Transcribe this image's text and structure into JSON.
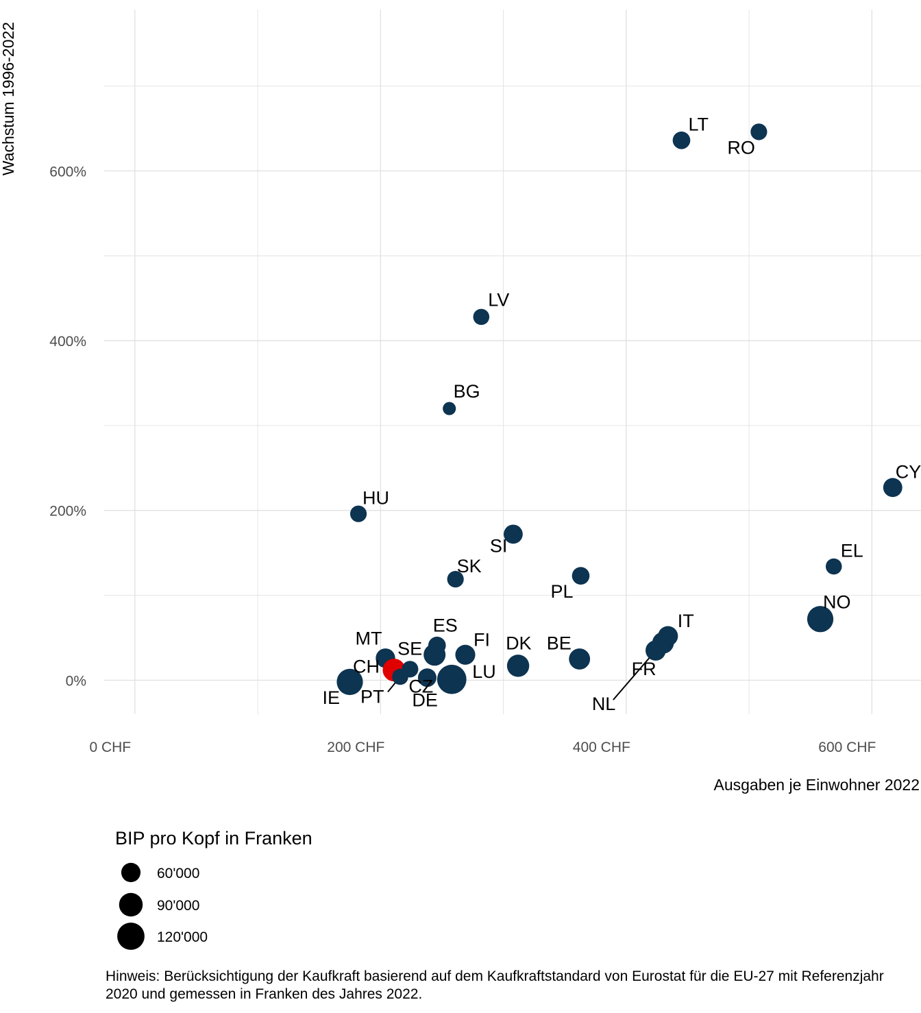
{
  "chart_data": {
    "type": "scatter",
    "title": "",
    "xlabel": "Ausgaben je Einwohner 2022",
    "ylabel": "Wachstum 1996-2022",
    "xlim": [
      -25,
      640
    ],
    "ylim": [
      -40,
      790
    ],
    "x_ticks": [
      {
        "value": 0,
        "label": "0 CHF"
      },
      {
        "value": 200,
        "label": "200 CHF"
      },
      {
        "value": 400,
        "label": "400 CHF"
      },
      {
        "value": 600,
        "label": "600 CHF"
      }
    ],
    "y_ticks": [
      {
        "value": 0,
        "label": "0%"
      },
      {
        "value": 200,
        "label": "200%"
      },
      {
        "value": 400,
        "label": "400%"
      },
      {
        "value": 600,
        "label": "600%"
      }
    ],
    "grid": true,
    "colors": {
      "default": "#0d3451",
      "highlight": "#e00000"
    },
    "points": [
      {
        "label": "LT",
        "x": 445,
        "y": 636,
        "size": 45000
      },
      {
        "label": "RO",
        "x": 508,
        "y": 646,
        "size": 40000
      },
      {
        "label": "LV",
        "x": 282,
        "y": 428,
        "size": 38000
      },
      {
        "label": "BG",
        "x": 256,
        "y": 320,
        "size": 25000
      },
      {
        "label": "HU",
        "x": 182,
        "y": 196,
        "size": 40000
      },
      {
        "label": "SI",
        "x": 308,
        "y": 172,
        "size": 53000
      },
      {
        "label": "SK",
        "x": 261,
        "y": 119,
        "size": 40000
      },
      {
        "label": "PL",
        "x": 363,
        "y": 123,
        "size": 45000
      },
      {
        "label": "CY",
        "x": 617,
        "y": 227,
        "size": 53000
      },
      {
        "label": "EL",
        "x": 569,
        "y": 134,
        "size": 38000
      },
      {
        "label": "NO",
        "x": 558,
        "y": 72,
        "size": 100000
      },
      {
        "label": "IT",
        "x": 434,
        "y": 52,
        "size": 58000
      },
      {
        "label": "FR",
        "x": 430,
        "y": 44,
        "size": 68000
      },
      {
        "label": "NL",
        "x": 424,
        "y": 35,
        "size": 60000
      },
      {
        "label": "BE",
        "x": 362,
        "y": 25,
        "size": 65000
      },
      {
        "label": "DK",
        "x": 312,
        "y": 17,
        "size": 72000
      },
      {
        "label": "ES",
        "x": 246,
        "y": 41,
        "size": 45000
      },
      {
        "label": "FI",
        "x": 269,
        "y": 30,
        "size": 58000
      },
      {
        "label": "SE",
        "x": 244,
        "y": 30,
        "size": 70000
      },
      {
        "label": "MT",
        "x": 204,
        "y": 26,
        "size": 55000
      },
      {
        "label": "CH",
        "x": 211,
        "y": 12,
        "size": 75000,
        "highlight": true
      },
      {
        "label": "PT",
        "x": 216,
        "y": 4,
        "size": 38000
      },
      {
        "label": "CZ",
        "x": 224,
        "y": 13,
        "size": 40000
      },
      {
        "label": "DE",
        "x": 238,
        "y": 3,
        "size": 50000
      },
      {
        "label": "LU",
        "x": 258,
        "y": 1,
        "size": 125000
      },
      {
        "label": "IE",
        "x": 175,
        "y": -2,
        "size": 100000
      }
    ],
    "legend": {
      "title": "BIP pro Kopf in Franken",
      "placement": "bottom-left",
      "items": [
        {
          "value": 60000,
          "label": "60'000"
        },
        {
          "value": 90000,
          "label": "90'000"
        },
        {
          "value": 120000,
          "label": "120'000"
        }
      ]
    }
  },
  "note": "Hinweis: Berücksichtigung der Kaufkraft basierend auf dem Kaufkraftstandard von Eurostat für die EU-27 mit Referenzjahr 2020 und gemessen in Franken des Jahres 2022."
}
